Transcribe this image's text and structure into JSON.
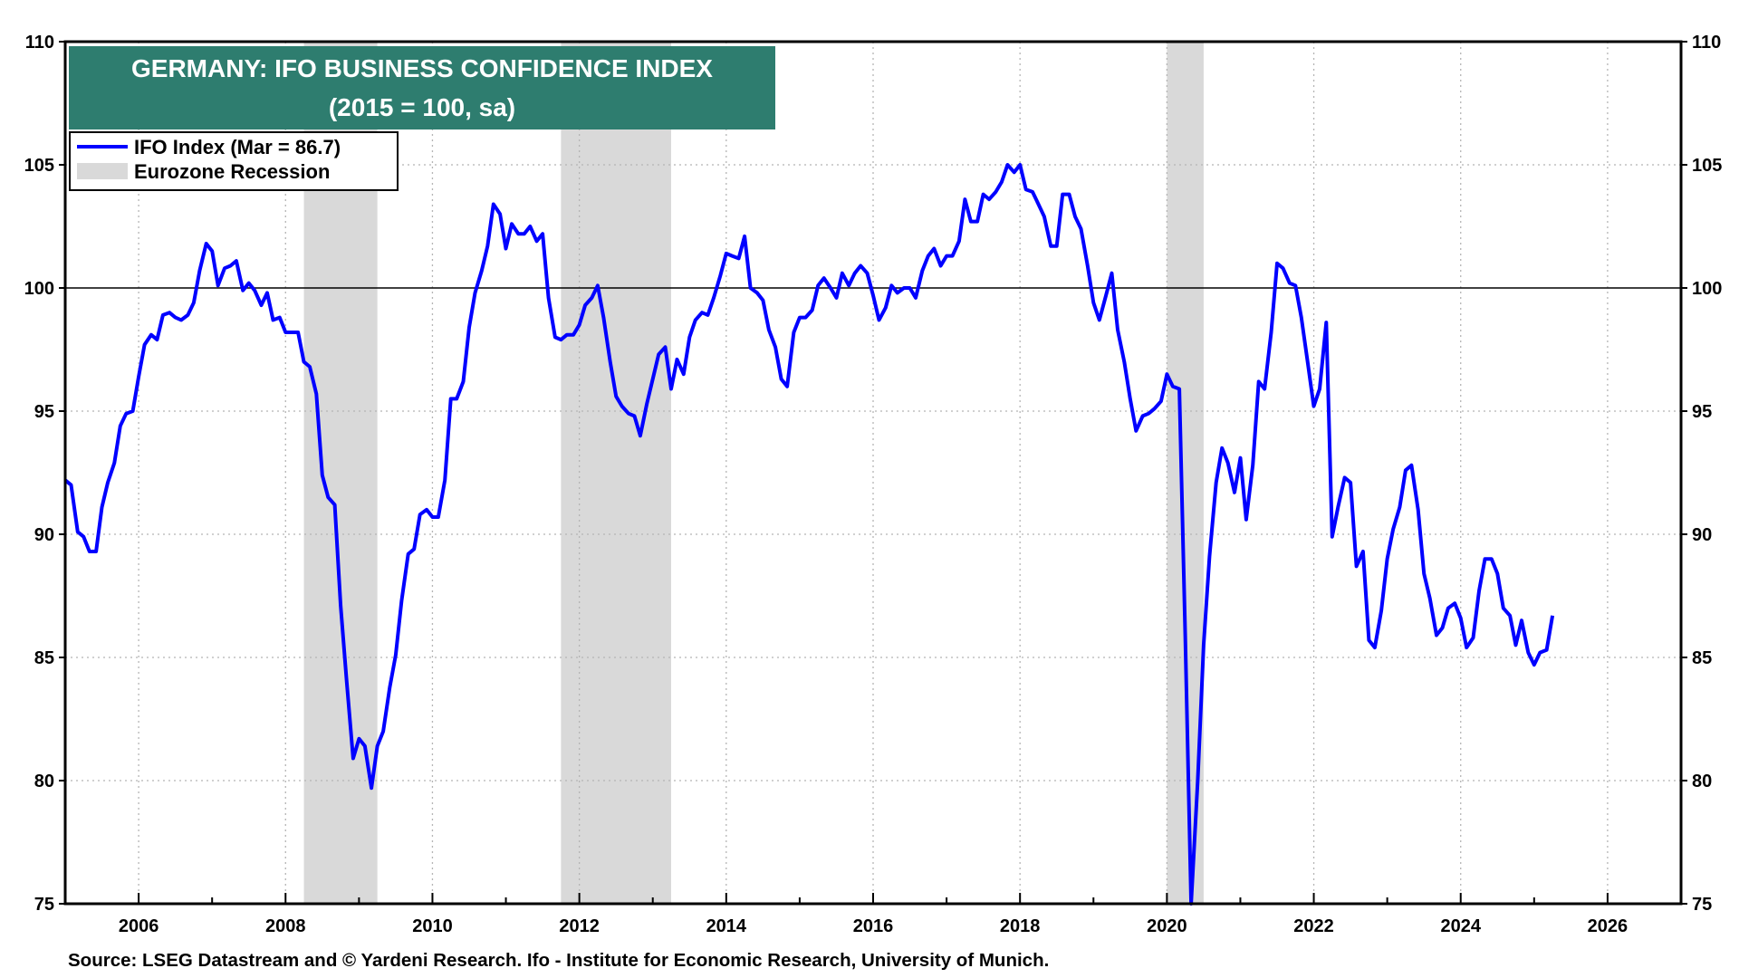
{
  "chart_data": {
    "type": "line",
    "title": "GERMANY: IFO BUSINESS  CONFIDENCE INDEX",
    "subtitle": "(2015 = 100, sa)",
    "source": "Source: LSEG Datastream and © Yardeni Research. Ifo - Institute for Economic Research, University of Munich.",
    "xlim": [
      2005.0,
      2027.0
    ],
    "ylim": [
      75,
      110
    ],
    "y_ticks": [
      75,
      80,
      85,
      90,
      95,
      100,
      105,
      110
    ],
    "y_tick_labels": [
      "75",
      "80",
      "85",
      "90",
      "95",
      "100",
      "105",
      "110"
    ],
    "x_ticks": [
      2006,
      2008,
      2010,
      2012,
      2014,
      2016,
      2018,
      2020,
      2022,
      2024,
      2026
    ],
    "x_tick_labels": [
      "2006",
      "2008",
      "2010",
      "2012",
      "2014",
      "2016",
      "2018",
      "2020",
      "2022",
      "2024",
      "2026"
    ],
    "reference_line": 100,
    "grid": "dotted",
    "legend_position": "top-left",
    "legend": [
      {
        "label": "IFO Index (Mar = 86.7)",
        "kind": "line"
      },
      {
        "label": "Eurozone Recession",
        "kind": "band"
      }
    ],
    "recessions": [
      {
        "start": 2008.25,
        "end": 2009.25
      },
      {
        "start": 2011.75,
        "end": 2013.25
      },
      {
        "start": 2020.0,
        "end": 2020.5
      }
    ],
    "series": [
      {
        "name": "IFO Index (Mar = 86.7)",
        "color": "#0000ff",
        "points": [
          [
            2005.0,
            92.2
          ],
          [
            2005.08,
            92.0
          ],
          [
            2005.17,
            90.1
          ],
          [
            2005.25,
            89.9
          ],
          [
            2005.33,
            89.3
          ],
          [
            2005.42,
            89.3
          ],
          [
            2005.5,
            91.1
          ],
          [
            2005.58,
            92.1
          ],
          [
            2005.67,
            92.9
          ],
          [
            2005.75,
            94.4
          ],
          [
            2005.83,
            94.9
          ],
          [
            2005.92,
            95.0
          ],
          [
            2006.0,
            96.4
          ],
          [
            2006.08,
            97.7
          ],
          [
            2006.17,
            98.1
          ],
          [
            2006.25,
            97.9
          ],
          [
            2006.33,
            98.9
          ],
          [
            2006.42,
            99.0
          ],
          [
            2006.5,
            98.8
          ],
          [
            2006.58,
            98.7
          ],
          [
            2006.67,
            98.9
          ],
          [
            2006.75,
            99.4
          ],
          [
            2006.83,
            100.7
          ],
          [
            2006.92,
            101.8
          ],
          [
            2007.0,
            101.5
          ],
          [
            2007.08,
            100.1
          ],
          [
            2007.17,
            100.8
          ],
          [
            2007.25,
            100.9
          ],
          [
            2007.33,
            101.1
          ],
          [
            2007.42,
            99.9
          ],
          [
            2007.5,
            100.2
          ],
          [
            2007.58,
            99.9
          ],
          [
            2007.67,
            99.3
          ],
          [
            2007.75,
            99.8
          ],
          [
            2007.83,
            98.7
          ],
          [
            2007.92,
            98.8
          ],
          [
            2008.0,
            98.2
          ],
          [
            2008.08,
            98.2
          ],
          [
            2008.17,
            98.2
          ],
          [
            2008.25,
            97.0
          ],
          [
            2008.33,
            96.8
          ],
          [
            2008.42,
            95.7
          ],
          [
            2008.5,
            92.4
          ],
          [
            2008.58,
            91.5
          ],
          [
            2008.67,
            91.2
          ],
          [
            2008.75,
            87.1
          ],
          [
            2008.83,
            84.1
          ],
          [
            2008.92,
            80.9
          ],
          [
            2009.0,
            81.7
          ],
          [
            2009.08,
            81.4
          ],
          [
            2009.17,
            79.7
          ],
          [
            2009.25,
            81.4
          ],
          [
            2009.33,
            82.0
          ],
          [
            2009.42,
            83.8
          ],
          [
            2009.5,
            85.1
          ],
          [
            2009.58,
            87.3
          ],
          [
            2009.67,
            89.2
          ],
          [
            2009.75,
            89.4
          ],
          [
            2009.83,
            90.8
          ],
          [
            2009.92,
            91.0
          ],
          [
            2010.0,
            90.7
          ],
          [
            2010.08,
            90.7
          ],
          [
            2010.17,
            92.2
          ],
          [
            2010.25,
            95.5
          ],
          [
            2010.33,
            95.5
          ],
          [
            2010.42,
            96.2
          ],
          [
            2010.5,
            98.4
          ],
          [
            2010.58,
            99.8
          ],
          [
            2010.67,
            100.7
          ],
          [
            2010.75,
            101.7
          ],
          [
            2010.83,
            103.4
          ],
          [
            2010.92,
            103.0
          ],
          [
            2011.0,
            101.6
          ],
          [
            2011.08,
            102.6
          ],
          [
            2011.17,
            102.2
          ],
          [
            2011.25,
            102.2
          ],
          [
            2011.33,
            102.5
          ],
          [
            2011.42,
            101.9
          ],
          [
            2011.5,
            102.2
          ],
          [
            2011.58,
            99.6
          ],
          [
            2011.67,
            98.0
          ],
          [
            2011.75,
            97.9
          ],
          [
            2011.83,
            98.1
          ],
          [
            2011.92,
            98.1
          ],
          [
            2012.0,
            98.5
          ],
          [
            2012.08,
            99.3
          ],
          [
            2012.17,
            99.6
          ],
          [
            2012.25,
            100.1
          ],
          [
            2012.33,
            98.8
          ],
          [
            2012.42,
            97.0
          ],
          [
            2012.5,
            95.6
          ],
          [
            2012.58,
            95.2
          ],
          [
            2012.67,
            94.9
          ],
          [
            2012.75,
            94.8
          ],
          [
            2012.83,
            94.0
          ],
          [
            2012.92,
            95.3
          ],
          [
            2013.0,
            96.3
          ],
          [
            2013.08,
            97.3
          ],
          [
            2013.17,
            97.6
          ],
          [
            2013.25,
            95.9
          ],
          [
            2013.33,
            97.1
          ],
          [
            2013.42,
            96.5
          ],
          [
            2013.5,
            98.0
          ],
          [
            2013.58,
            98.7
          ],
          [
            2013.67,
            99.0
          ],
          [
            2013.75,
            98.9
          ],
          [
            2013.83,
            99.6
          ],
          [
            2013.92,
            100.5
          ],
          [
            2014.0,
            101.4
          ],
          [
            2014.08,
            101.3
          ],
          [
            2014.17,
            101.2
          ],
          [
            2014.25,
            102.1
          ],
          [
            2014.33,
            100.0
          ],
          [
            2014.42,
            99.8
          ],
          [
            2014.5,
            99.5
          ],
          [
            2014.58,
            98.3
          ],
          [
            2014.67,
            97.6
          ],
          [
            2014.75,
            96.3
          ],
          [
            2014.83,
            96.0
          ],
          [
            2014.92,
            98.2
          ],
          [
            2015.0,
            98.8
          ],
          [
            2015.08,
            98.8
          ],
          [
            2015.17,
            99.1
          ],
          [
            2015.25,
            100.1
          ],
          [
            2015.33,
            100.4
          ],
          [
            2015.42,
            100.0
          ],
          [
            2015.5,
            99.6
          ],
          [
            2015.58,
            100.6
          ],
          [
            2015.67,
            100.1
          ],
          [
            2015.75,
            100.6
          ],
          [
            2015.83,
            100.9
          ],
          [
            2015.92,
            100.6
          ],
          [
            2016.0,
            99.7
          ],
          [
            2016.08,
            98.7
          ],
          [
            2016.17,
            99.2
          ],
          [
            2016.25,
            100.1
          ],
          [
            2016.33,
            99.8
          ],
          [
            2016.42,
            100.0
          ],
          [
            2016.5,
            100.0
          ],
          [
            2016.58,
            99.6
          ],
          [
            2016.67,
            100.7
          ],
          [
            2016.75,
            101.3
          ],
          [
            2016.83,
            101.6
          ],
          [
            2016.92,
            100.9
          ],
          [
            2017.0,
            101.3
          ],
          [
            2017.08,
            101.3
          ],
          [
            2017.17,
            101.9
          ],
          [
            2017.25,
            103.6
          ],
          [
            2017.33,
            102.7
          ],
          [
            2017.42,
            102.7
          ],
          [
            2017.5,
            103.8
          ],
          [
            2017.58,
            103.6
          ],
          [
            2017.67,
            103.9
          ],
          [
            2017.75,
            104.3
          ],
          [
            2017.83,
            105.0
          ],
          [
            2017.92,
            104.7
          ],
          [
            2018.0,
            105.0
          ],
          [
            2018.08,
            104.0
          ],
          [
            2018.17,
            103.9
          ],
          [
            2018.25,
            103.4
          ],
          [
            2018.33,
            102.9
          ],
          [
            2018.42,
            101.7
          ],
          [
            2018.5,
            101.7
          ],
          [
            2018.58,
            103.8
          ],
          [
            2018.67,
            103.8
          ],
          [
            2018.75,
            102.9
          ],
          [
            2018.83,
            102.4
          ],
          [
            2018.92,
            100.9
          ],
          [
            2019.0,
            99.4
          ],
          [
            2019.08,
            98.7
          ],
          [
            2019.17,
            99.7
          ],
          [
            2019.25,
            100.6
          ],
          [
            2019.33,
            98.3
          ],
          [
            2019.42,
            97.0
          ],
          [
            2019.5,
            95.5
          ],
          [
            2019.58,
            94.2
          ],
          [
            2019.67,
            94.8
          ],
          [
            2019.75,
            94.9
          ],
          [
            2019.83,
            95.1
          ],
          [
            2019.92,
            95.4
          ],
          [
            2020.0,
            96.5
          ],
          [
            2020.08,
            96.0
          ],
          [
            2020.17,
            95.9
          ],
          [
            2020.25,
            85.9
          ],
          [
            2020.33,
            75.0
          ],
          [
            2020.42,
            80.0
          ],
          [
            2020.5,
            85.5
          ],
          [
            2020.58,
            89.1
          ],
          [
            2020.67,
            92.1
          ],
          [
            2020.75,
            93.5
          ],
          [
            2020.83,
            92.9
          ],
          [
            2020.92,
            91.7
          ],
          [
            2021.0,
            93.1
          ],
          [
            2021.08,
            90.6
          ],
          [
            2021.17,
            92.8
          ],
          [
            2021.25,
            96.2
          ],
          [
            2021.33,
            95.9
          ],
          [
            2021.42,
            98.2
          ],
          [
            2021.5,
            101.0
          ],
          [
            2021.58,
            100.8
          ],
          [
            2021.67,
            100.2
          ],
          [
            2021.75,
            100.1
          ],
          [
            2021.83,
            98.8
          ],
          [
            2021.92,
            96.9
          ],
          [
            2022.0,
            95.2
          ],
          [
            2022.08,
            95.9
          ],
          [
            2022.17,
            98.6
          ],
          [
            2022.25,
            89.9
          ],
          [
            2022.33,
            91.1
          ],
          [
            2022.42,
            92.3
          ],
          [
            2022.5,
            92.1
          ],
          [
            2022.58,
            88.7
          ],
          [
            2022.67,
            89.3
          ],
          [
            2022.75,
            85.7
          ],
          [
            2022.83,
            85.4
          ],
          [
            2022.92,
            86.9
          ],
          [
            2023.0,
            89.0
          ],
          [
            2023.08,
            90.2
          ],
          [
            2023.17,
            91.1
          ],
          [
            2023.25,
            92.6
          ],
          [
            2023.33,
            92.8
          ],
          [
            2023.42,
            91.0
          ],
          [
            2023.5,
            88.4
          ],
          [
            2023.58,
            87.4
          ],
          [
            2023.67,
            85.9
          ],
          [
            2023.75,
            86.2
          ],
          [
            2023.83,
            87.0
          ],
          [
            2023.92,
            87.2
          ],
          [
            2024.0,
            86.6
          ],
          [
            2024.08,
            85.4
          ],
          [
            2024.17,
            85.8
          ],
          [
            2024.25,
            87.7
          ],
          [
            2024.33,
            89.0
          ],
          [
            2024.42,
            89.0
          ],
          [
            2024.5,
            88.4
          ],
          [
            2024.58,
            87.0
          ],
          [
            2024.67,
            86.7
          ],
          [
            2024.75,
            85.5
          ],
          [
            2024.83,
            86.5
          ],
          [
            2024.92,
            85.2
          ],
          [
            2025.0,
            84.7
          ],
          [
            2025.08,
            85.2
          ],
          [
            2025.17,
            85.3
          ],
          [
            2025.25,
            86.7
          ]
        ]
      }
    ]
  }
}
